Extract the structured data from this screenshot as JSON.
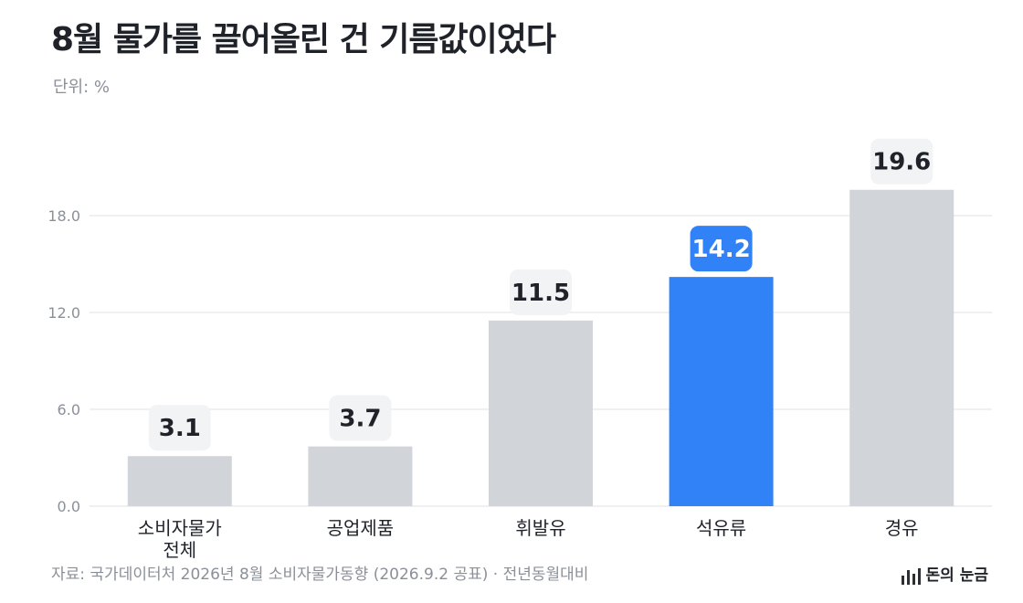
{
  "header": {
    "title": "8월 물가를 끌어올린 건 기름값이었다",
    "unit": "단위: %"
  },
  "footer": {
    "source": "자료: 국가데이터처 2026년 8월 소비자물가동향 (2026.9.2 공표) · 전년동월대비",
    "brand": "돈의 눈금"
  },
  "colors": {
    "bar": "#d1d5da",
    "highlight": "#3182f6",
    "label_box": "#f2f3f5",
    "label_text": "#1f2329",
    "label_text_highlight": "#ffffff",
    "grid": "#e5e7ea",
    "axis_text": "#8b9098"
  },
  "chart_data": {
    "type": "bar",
    "categories": [
      [
        "소비자물가",
        "전체"
      ],
      [
        "공업제품"
      ],
      [
        "휘발유"
      ],
      [
        "석유류"
      ],
      [
        "경유"
      ]
    ],
    "values": [
      3.1,
      3.7,
      11.5,
      14.2,
      19.6
    ],
    "value_labels": [
      "3.1",
      "3.7",
      "11.5",
      "14.2",
      "19.6"
    ],
    "highlight_index": 3,
    "yticks": [
      0,
      6,
      12,
      18
    ],
    "ytick_labels": [
      "0.0",
      "6.0",
      "12.0",
      "18.0"
    ],
    "ylim": [
      0,
      21
    ],
    "grid": true,
    "legend": "none"
  }
}
